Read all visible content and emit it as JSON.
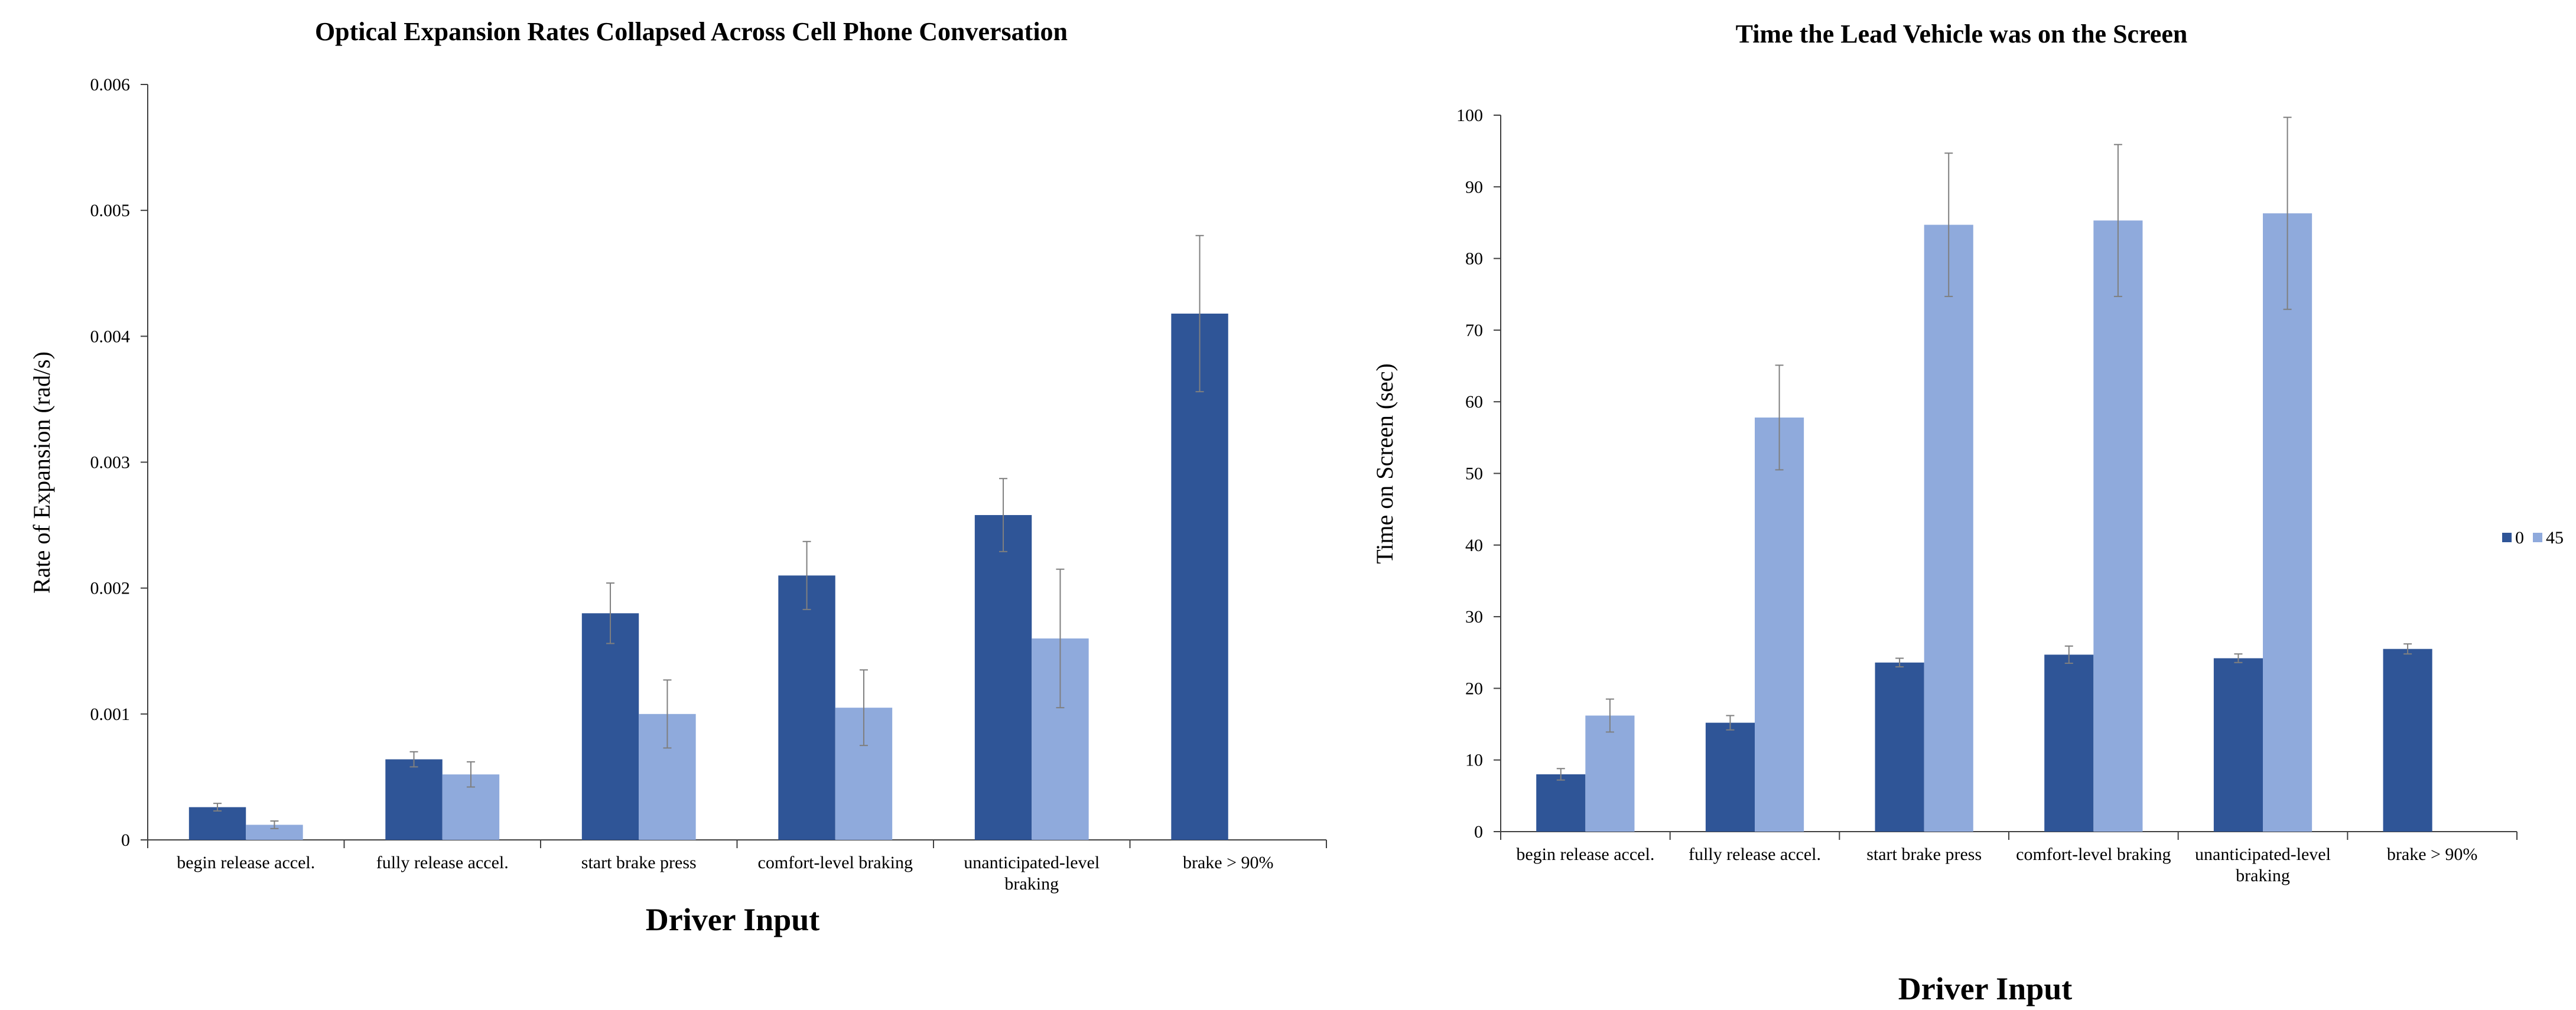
{
  "chart_data": [
    {
      "type": "bar",
      "title": "Optical Expansion Rates Collapsed Across Cell Phone Conversation",
      "xlabel": "Driver Input",
      "ylabel": "Rate of Expansion (rad/s)",
      "ylim": [
        0,
        0.006
      ],
      "yticks": [
        "0",
        "0.001",
        "0.002",
        "0.003",
        "0.004",
        "0.005",
        "0.006"
      ],
      "grid": false,
      "legend": "none",
      "categories": [
        [
          "begin release accel."
        ],
        [
          "fully release accel."
        ],
        [
          "start brake press"
        ],
        [
          "comfort-level braking"
        ],
        [
          "unanticipated-level",
          "braking"
        ],
        [
          "brake > 90%"
        ]
      ],
      "series": [
        {
          "color": "#2f5597",
          "values": [
            0.00026,
            0.00064,
            0.0018,
            0.0021,
            0.00258,
            0.00418
          ],
          "errors": [
            3e-05,
            6e-05,
            0.00024,
            0.00027,
            0.00029,
            0.00062
          ]
        },
        {
          "color": "#8faadc",
          "values": [
            0.00012,
            0.00052,
            0.001,
            0.00105,
            0.0016,
            null
          ],
          "errors": [
            3e-05,
            0.0001,
            0.00027,
            0.0003,
            0.00055,
            null
          ]
        }
      ]
    },
    {
      "type": "bar",
      "title": "Time the Lead Vehicle was on the Screen",
      "xlabel": "Driver Input",
      "ylabel": "Time on Screen (sec)",
      "ylim": [
        0,
        100
      ],
      "yticks": [
        "0",
        "10",
        "20",
        "30",
        "40",
        "50",
        "60",
        "70",
        "80",
        "90",
        "100"
      ],
      "grid": false,
      "legend": "right",
      "categories": [
        [
          "begin release accel."
        ],
        [
          "fully release accel."
        ],
        [
          "start brake press"
        ],
        [
          "comfort-level braking"
        ],
        [
          "unanticipated-level",
          "braking"
        ],
        [
          "brake > 90%"
        ]
      ],
      "series": [
        {
          "name": "0",
          "color": "#2f5597",
          "values": [
            8,
            15.2,
            23.6,
            24.7,
            24.2,
            25.5
          ],
          "errors": [
            0.8,
            1.0,
            0.6,
            1.2,
            0.6,
            0.7
          ]
        },
        {
          "name": "45",
          "color": "#8faadc",
          "values": [
            16.2,
            57.8,
            84.7,
            85.3,
            86.3,
            null
          ],
          "errors": [
            2.3,
            7.3,
            10.0,
            10.6,
            13.4,
            null
          ]
        }
      ]
    }
  ]
}
